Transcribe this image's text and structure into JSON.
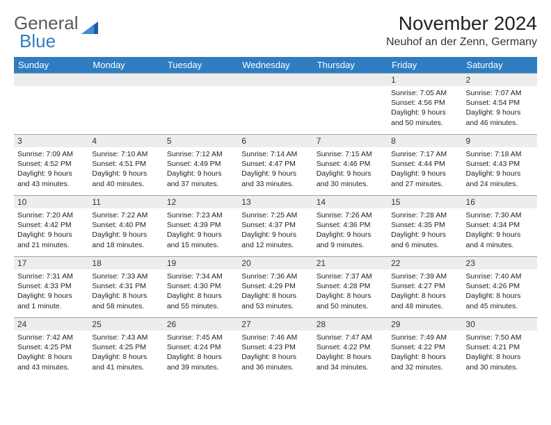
{
  "logo": {
    "text1": "General",
    "text2": "Blue"
  },
  "title": "November 2024",
  "location": "Neuhof an der Zenn, Germany",
  "colors": {
    "header_bg": "#2f7dc0",
    "header_fg": "#ffffff",
    "daynum_bg": "#ededed",
    "border": "#8aa8bf",
    "logo_gray": "#5a5a5a",
    "logo_blue": "#2f7dc0"
  },
  "weekdays": [
    "Sunday",
    "Monday",
    "Tuesday",
    "Wednesday",
    "Thursday",
    "Friday",
    "Saturday"
  ],
  "weeks": [
    [
      null,
      null,
      null,
      null,
      null,
      {
        "n": "1",
        "sr": "Sunrise: 7:05 AM",
        "ss": "Sunset: 4:56 PM",
        "d1": "Daylight: 9 hours",
        "d2": "and 50 minutes."
      },
      {
        "n": "2",
        "sr": "Sunrise: 7:07 AM",
        "ss": "Sunset: 4:54 PM",
        "d1": "Daylight: 9 hours",
        "d2": "and 46 minutes."
      }
    ],
    [
      {
        "n": "3",
        "sr": "Sunrise: 7:09 AM",
        "ss": "Sunset: 4:52 PM",
        "d1": "Daylight: 9 hours",
        "d2": "and 43 minutes."
      },
      {
        "n": "4",
        "sr": "Sunrise: 7:10 AM",
        "ss": "Sunset: 4:51 PM",
        "d1": "Daylight: 9 hours",
        "d2": "and 40 minutes."
      },
      {
        "n": "5",
        "sr": "Sunrise: 7:12 AM",
        "ss": "Sunset: 4:49 PM",
        "d1": "Daylight: 9 hours",
        "d2": "and 37 minutes."
      },
      {
        "n": "6",
        "sr": "Sunrise: 7:14 AM",
        "ss": "Sunset: 4:47 PM",
        "d1": "Daylight: 9 hours",
        "d2": "and 33 minutes."
      },
      {
        "n": "7",
        "sr": "Sunrise: 7:15 AM",
        "ss": "Sunset: 4:46 PM",
        "d1": "Daylight: 9 hours",
        "d2": "and 30 minutes."
      },
      {
        "n": "8",
        "sr": "Sunrise: 7:17 AM",
        "ss": "Sunset: 4:44 PM",
        "d1": "Daylight: 9 hours",
        "d2": "and 27 minutes."
      },
      {
        "n": "9",
        "sr": "Sunrise: 7:18 AM",
        "ss": "Sunset: 4:43 PM",
        "d1": "Daylight: 9 hours",
        "d2": "and 24 minutes."
      }
    ],
    [
      {
        "n": "10",
        "sr": "Sunrise: 7:20 AM",
        "ss": "Sunset: 4:42 PM",
        "d1": "Daylight: 9 hours",
        "d2": "and 21 minutes."
      },
      {
        "n": "11",
        "sr": "Sunrise: 7:22 AM",
        "ss": "Sunset: 4:40 PM",
        "d1": "Daylight: 9 hours",
        "d2": "and 18 minutes."
      },
      {
        "n": "12",
        "sr": "Sunrise: 7:23 AM",
        "ss": "Sunset: 4:39 PM",
        "d1": "Daylight: 9 hours",
        "d2": "and 15 minutes."
      },
      {
        "n": "13",
        "sr": "Sunrise: 7:25 AM",
        "ss": "Sunset: 4:37 PM",
        "d1": "Daylight: 9 hours",
        "d2": "and 12 minutes."
      },
      {
        "n": "14",
        "sr": "Sunrise: 7:26 AM",
        "ss": "Sunset: 4:36 PM",
        "d1": "Daylight: 9 hours",
        "d2": "and 9 minutes."
      },
      {
        "n": "15",
        "sr": "Sunrise: 7:28 AM",
        "ss": "Sunset: 4:35 PM",
        "d1": "Daylight: 9 hours",
        "d2": "and 6 minutes."
      },
      {
        "n": "16",
        "sr": "Sunrise: 7:30 AM",
        "ss": "Sunset: 4:34 PM",
        "d1": "Daylight: 9 hours",
        "d2": "and 4 minutes."
      }
    ],
    [
      {
        "n": "17",
        "sr": "Sunrise: 7:31 AM",
        "ss": "Sunset: 4:33 PM",
        "d1": "Daylight: 9 hours",
        "d2": "and 1 minute."
      },
      {
        "n": "18",
        "sr": "Sunrise: 7:33 AM",
        "ss": "Sunset: 4:31 PM",
        "d1": "Daylight: 8 hours",
        "d2": "and 58 minutes."
      },
      {
        "n": "19",
        "sr": "Sunrise: 7:34 AM",
        "ss": "Sunset: 4:30 PM",
        "d1": "Daylight: 8 hours",
        "d2": "and 55 minutes."
      },
      {
        "n": "20",
        "sr": "Sunrise: 7:36 AM",
        "ss": "Sunset: 4:29 PM",
        "d1": "Daylight: 8 hours",
        "d2": "and 53 minutes."
      },
      {
        "n": "21",
        "sr": "Sunrise: 7:37 AM",
        "ss": "Sunset: 4:28 PM",
        "d1": "Daylight: 8 hours",
        "d2": "and 50 minutes."
      },
      {
        "n": "22",
        "sr": "Sunrise: 7:39 AM",
        "ss": "Sunset: 4:27 PM",
        "d1": "Daylight: 8 hours",
        "d2": "and 48 minutes."
      },
      {
        "n": "23",
        "sr": "Sunrise: 7:40 AM",
        "ss": "Sunset: 4:26 PM",
        "d1": "Daylight: 8 hours",
        "d2": "and 45 minutes."
      }
    ],
    [
      {
        "n": "24",
        "sr": "Sunrise: 7:42 AM",
        "ss": "Sunset: 4:25 PM",
        "d1": "Daylight: 8 hours",
        "d2": "and 43 minutes."
      },
      {
        "n": "25",
        "sr": "Sunrise: 7:43 AM",
        "ss": "Sunset: 4:25 PM",
        "d1": "Daylight: 8 hours",
        "d2": "and 41 minutes."
      },
      {
        "n": "26",
        "sr": "Sunrise: 7:45 AM",
        "ss": "Sunset: 4:24 PM",
        "d1": "Daylight: 8 hours",
        "d2": "and 39 minutes."
      },
      {
        "n": "27",
        "sr": "Sunrise: 7:46 AM",
        "ss": "Sunset: 4:23 PM",
        "d1": "Daylight: 8 hours",
        "d2": "and 36 minutes."
      },
      {
        "n": "28",
        "sr": "Sunrise: 7:47 AM",
        "ss": "Sunset: 4:22 PM",
        "d1": "Daylight: 8 hours",
        "d2": "and 34 minutes."
      },
      {
        "n": "29",
        "sr": "Sunrise: 7:49 AM",
        "ss": "Sunset: 4:22 PM",
        "d1": "Daylight: 8 hours",
        "d2": "and 32 minutes."
      },
      {
        "n": "30",
        "sr": "Sunrise: 7:50 AM",
        "ss": "Sunset: 4:21 PM",
        "d1": "Daylight: 8 hours",
        "d2": "and 30 minutes."
      }
    ]
  ]
}
